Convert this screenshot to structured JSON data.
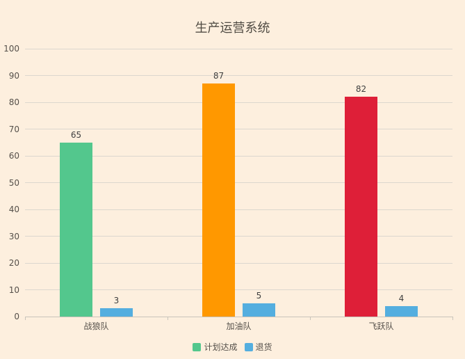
{
  "title": {
    "text": "生产运营系统"
  },
  "colors": {
    "background": "#fdefde",
    "grid_line": "#dcd7ce",
    "axis_line": "#c8c3ba",
    "title_text": "#514c44",
    "axis_text": "#55504a",
    "value_text": "#3f3f3f",
    "series_green": "#53c78d",
    "series_orange": "#ff9800",
    "series_red": "#de1f38",
    "series_blue": "#54aedf"
  },
  "legend": {
    "items": [
      {
        "label": "计划达成",
        "color": "#53c78d"
      },
      {
        "label": "退货",
        "color": "#54aedf"
      }
    ]
  },
  "chart_data": {
    "type": "bar",
    "title": "生产运营系统",
    "categories": [
      "战狼队",
      "加油队",
      "飞跃队"
    ],
    "series": [
      {
        "name": "计划达成",
        "values": [
          65,
          87,
          82
        ],
        "bar_colors": [
          "#53c78d",
          "#ff9800",
          "#de1f38"
        ]
      },
      {
        "name": "退货",
        "values": [
          3,
          5,
          4
        ],
        "bar_colors": [
          "#54aedf",
          "#54aedf",
          "#54aedf"
        ]
      }
    ],
    "ylim": [
      0,
      100
    ],
    "y_ticks": [
      0,
      10,
      20,
      30,
      40,
      50,
      60,
      70,
      80,
      90,
      100
    ],
    "grid": true,
    "value_labels_shown": true,
    "legend_position": "bottom"
  }
}
